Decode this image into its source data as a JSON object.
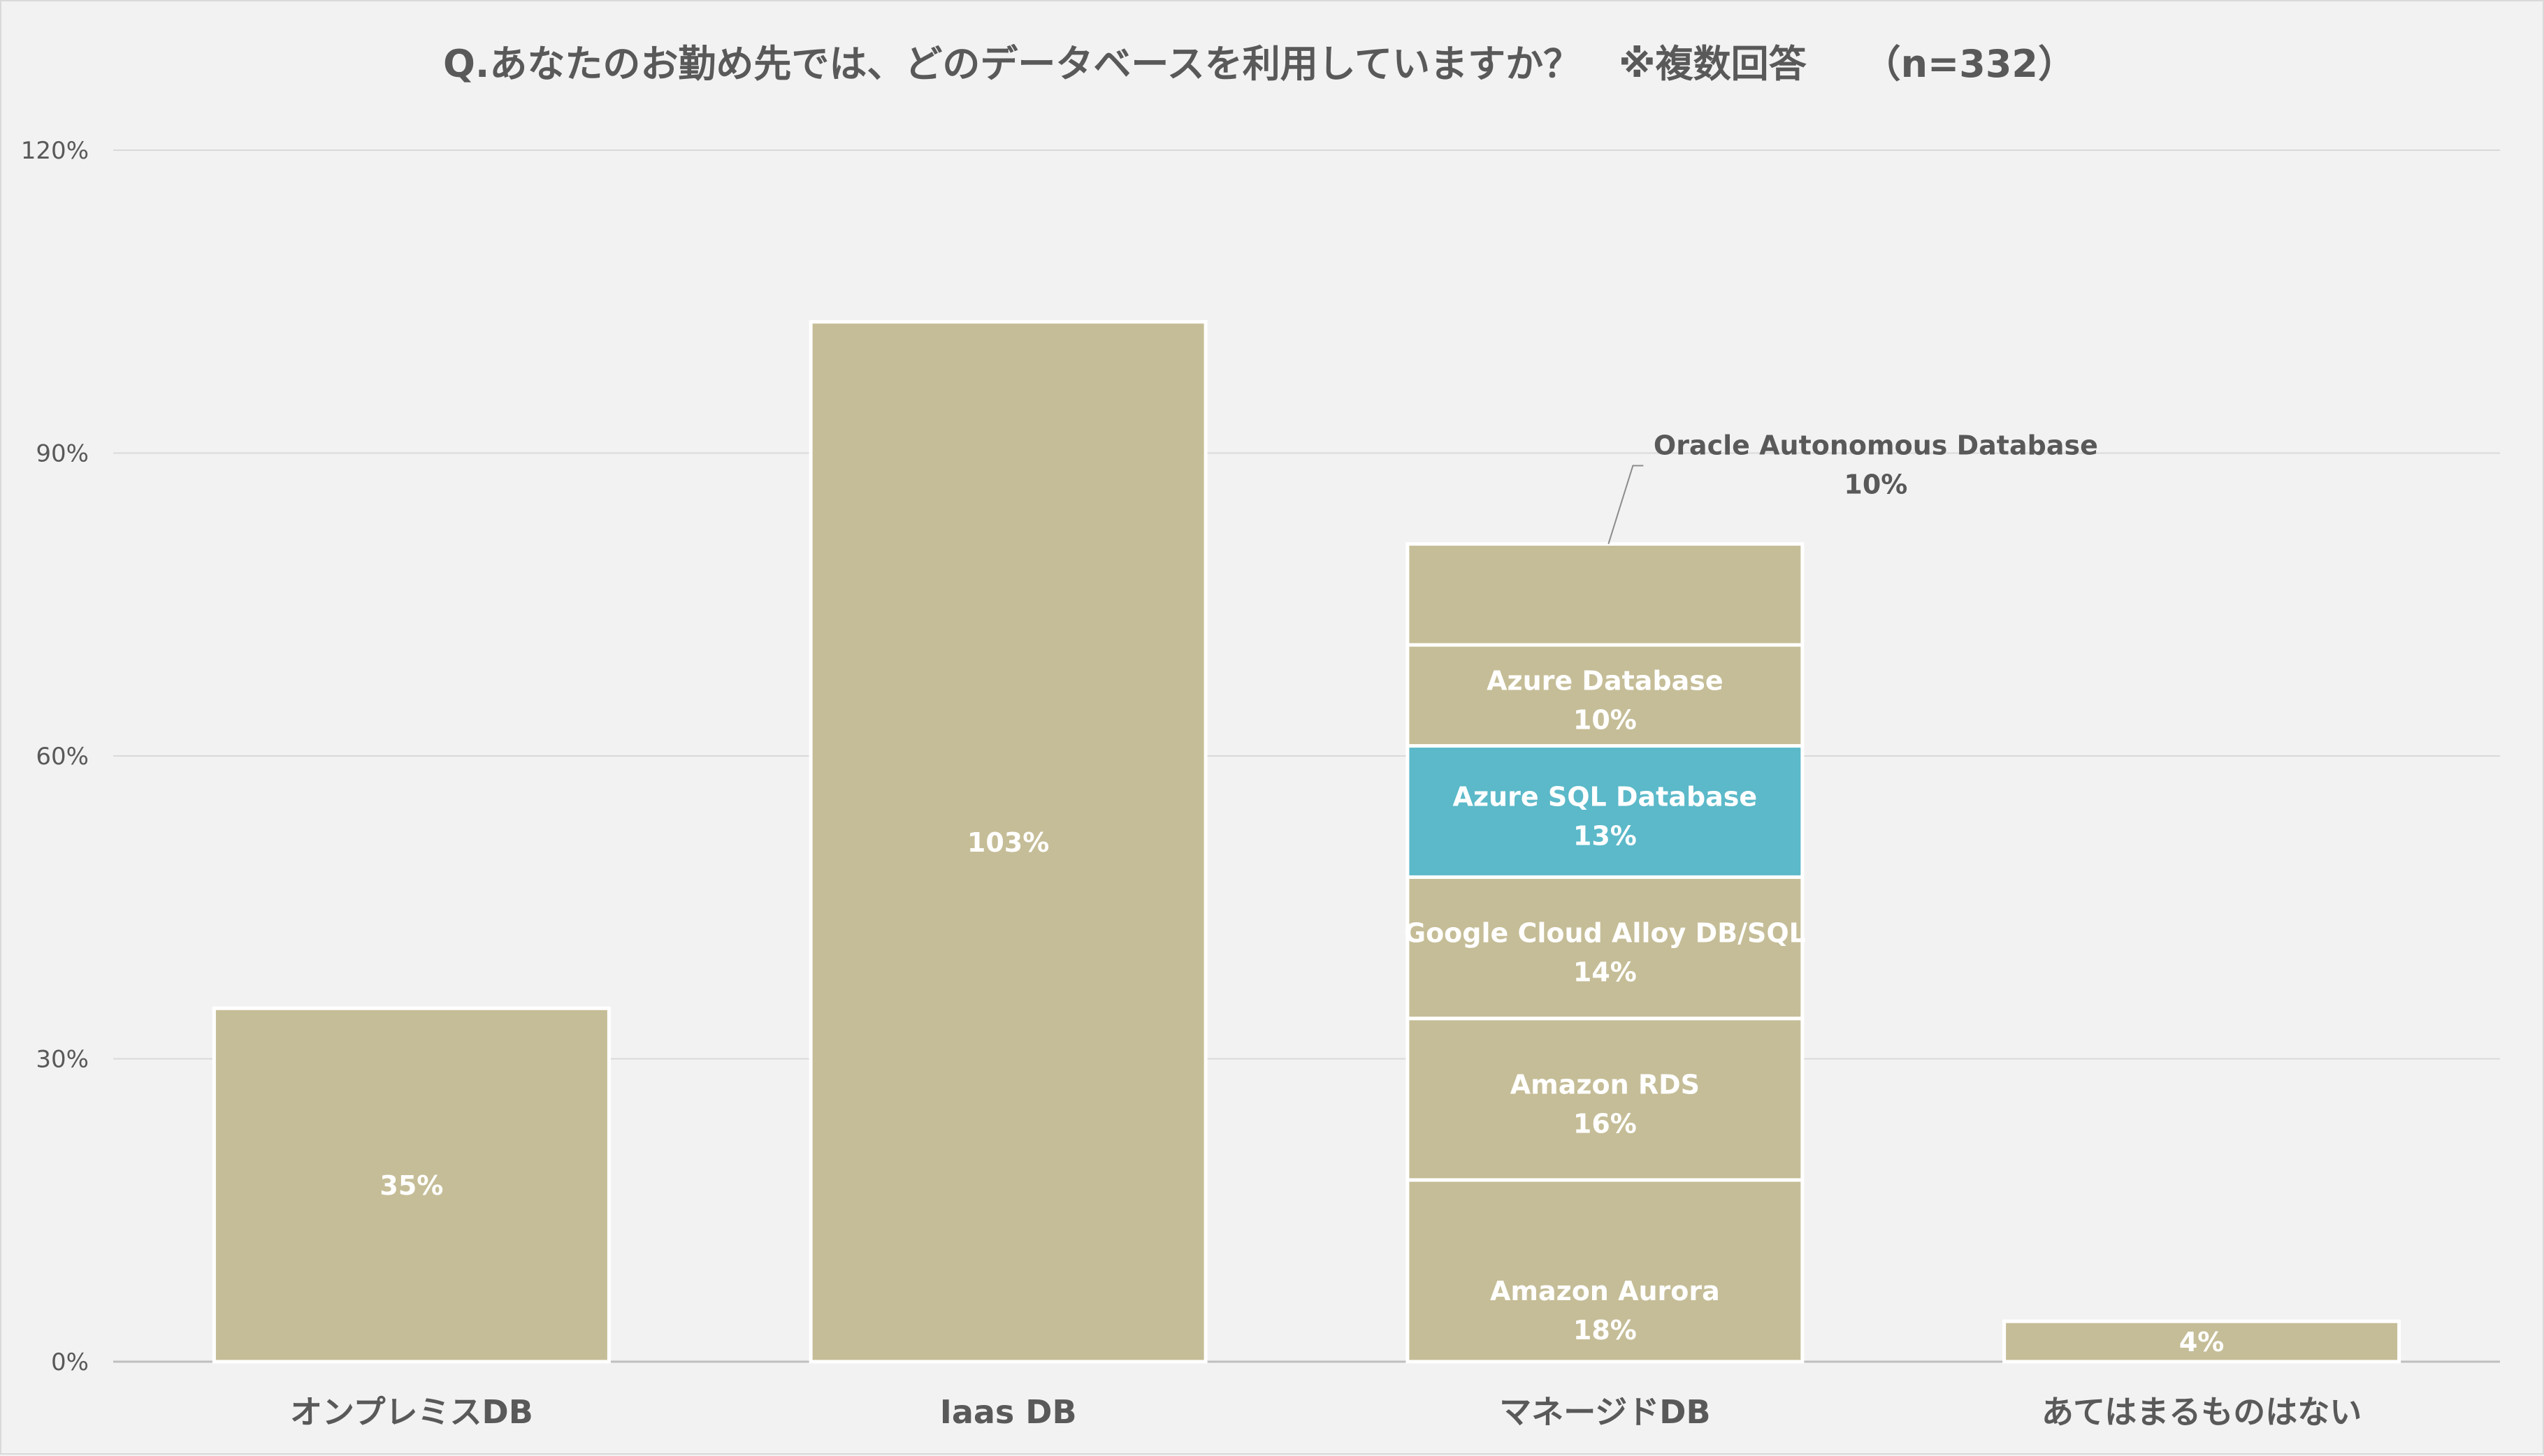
{
  "chart_data": {
    "type": "bar",
    "stacked": true,
    "title": "Q.あなたのお勤め先では、どのデータベースを利用していますか？　※複数回答　　（n=332）",
    "ylim": [
      0,
      120
    ],
    "yticks": [
      0,
      30,
      60,
      90,
      120
    ],
    "ytick_labels": [
      "0%",
      "30%",
      "60%",
      "90%",
      "120%"
    ],
    "grid": true,
    "legend": "none",
    "categories": [
      "オンプレミスDB",
      "Iaas DB",
      "マネージドDB",
      "あてはまるものはない"
    ],
    "bars": [
      {
        "category": "オンプレミスDB",
        "segments": [
          {
            "name": "",
            "value": 35,
            "label": "35%",
            "color": "#c5bd97"
          }
        ]
      },
      {
        "category": "Iaas DB",
        "segments": [
          {
            "name": "",
            "value": 103,
            "label": "103%",
            "color": "#c5bd97"
          }
        ]
      },
      {
        "category": "マネージドDB",
        "segments": [
          {
            "name": "Amazon Aurora",
            "value": 18,
            "label": "18%",
            "color": "#c5bd97"
          },
          {
            "name": "Amazon RDS",
            "value": 16,
            "label": "16%",
            "color": "#c5bd97"
          },
          {
            "name": "Google Cloud Alloy DB/SQL",
            "value": 14,
            "label": "14%",
            "color": "#c5bd97"
          },
          {
            "name": "Azure SQL Database",
            "value": 13,
            "label": "13%",
            "color": "#5bb9c9"
          },
          {
            "name": "Azure Database",
            "value": 10,
            "label": "10%",
            "color": "#c5bd97"
          },
          {
            "name": "Oracle Autonomous Database",
            "value": 10,
            "label": "10%",
            "color": "#c5bd97",
            "callout": true
          }
        ]
      },
      {
        "category": "あてはまるものはない",
        "segments": [
          {
            "name": "",
            "value": 4,
            "label": "4%",
            "color": "#c5bd97"
          }
        ]
      }
    ],
    "colors": {
      "bar": "#c5bd97",
      "highlight": "#5bb9c9",
      "background": "#f2f2f2",
      "text": "#595959"
    }
  }
}
